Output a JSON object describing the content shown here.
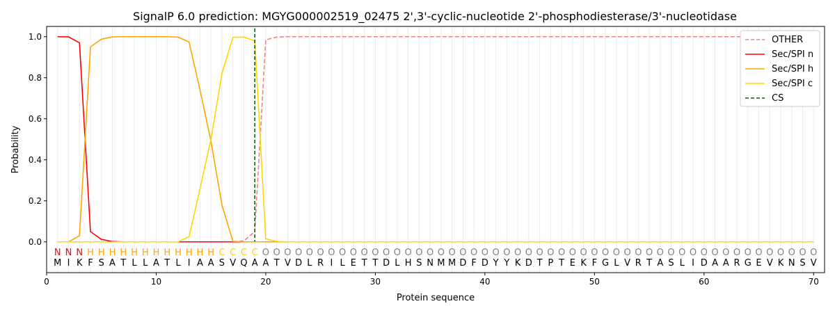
{
  "chart_data": {
    "type": "line",
    "title": "SignalP 6.0 prediction: MGYG000002519_02475 2',3'-cyclic-nucleotide 2'-phosphodiesterase/3'-nucleotidase",
    "xlabel": "Protein sequence",
    "ylabel": "Probability",
    "xlim": [
      0,
      71
    ],
    "ylim": [
      -0.15,
      1.05
    ],
    "xticks": [
      0,
      10,
      20,
      30,
      40,
      50,
      60,
      70
    ],
    "yticks": [
      "0.0",
      "0.2",
      "0.4",
      "0.6",
      "0.8",
      "1.0"
    ],
    "legend_position": "top-right",
    "sequence": "MIKFSATLLATLIAASVQAATVDLRILETTDLHSNMMDFDYYKDTPTEKFGLVRTASLIDAARGEVKNSV",
    "labels": "NNNHHHHHHHHHHHHCCCCOOOOOOOOOOOOOOOOOOOOOOOOOOOOOOOOOOOOOOOOOOOOOOOOOOO",
    "label_colors": {
      "N": "#ff0000",
      "H": "#ffa500",
      "C": "#ffd700",
      "O": "#808080"
    },
    "cleavage_site": 19,
    "series": [
      {
        "name": "OTHER",
        "color": "#f08080",
        "dash": true,
        "sparse": {
          "18": 0.005,
          "19": 0.05,
          "20": 0.985,
          "21": 0.998
        },
        "after": 1,
        "afterStart": 22,
        "before": 0
      },
      {
        "name": "Sec/SPI n",
        "color": "#ff0000",
        "sparse": {
          "1": 1.0,
          "2": 0.999,
          "3": 0.97,
          "4": 0.05,
          "5": 0.012,
          "6": 0.002
        },
        "after": 0,
        "afterStart": 7,
        "before": 0
      },
      {
        "name": "Sec/SPI h",
        "color": "#ffa500",
        "sparse": {
          "1": 0,
          "2": 0,
          "3": 0.03,
          "4": 0.95,
          "5": 0.988,
          "6": 0.999,
          "7": 1,
          "8": 1,
          "9": 1,
          "10": 1,
          "11": 1,
          "12": 0.998,
          "13": 0.974,
          "14": 0.74,
          "15": 0.49,
          "16": 0.18,
          "17": 0.003
        },
        "after": 0,
        "afterStart": 18,
        "before": 0
      },
      {
        "name": "Sec/SPI c",
        "color": "#ffd700",
        "sparse": {
          "13": 0.025,
          "14": 0.26,
          "15": 0.5,
          "16": 0.82,
          "17": 0.997,
          "18": 0.998,
          "19": 0.98,
          "20": 0.015,
          "21": 0.002
        },
        "after": 0,
        "afterStart": 22,
        "before": 0
      }
    ],
    "cs_label": "CS"
  }
}
